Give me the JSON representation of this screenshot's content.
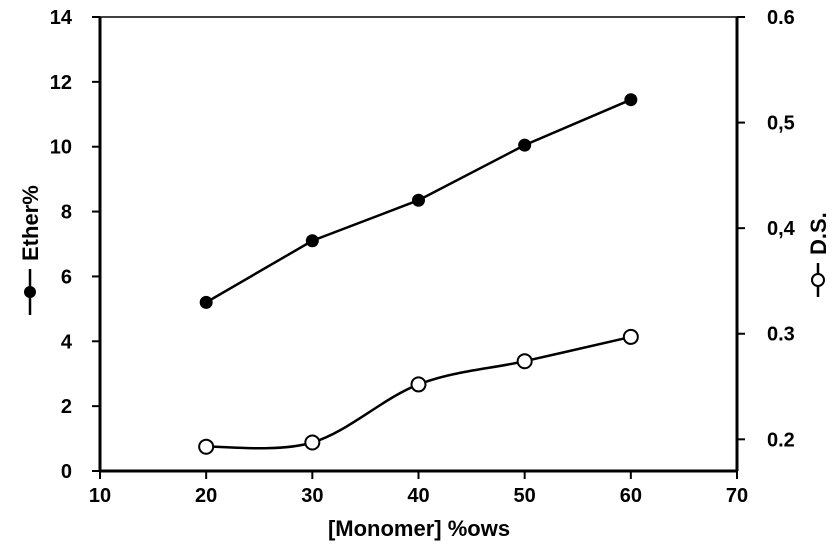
{
  "chart_data": {
    "type": "line",
    "xlabel": "[Monomer] %ows",
    "ylabel": "Ether%",
    "y2label": "D.S.",
    "xlim": [
      10,
      70
    ],
    "ylim": [
      0,
      14
    ],
    "y2lim": [
      0.17,
      0.6
    ],
    "xticks": [
      10,
      20,
      30,
      40,
      50,
      60,
      70
    ],
    "yticks": [
      0,
      2,
      4,
      6,
      8,
      10,
      12,
      14
    ],
    "y2ticks": [
      0.2,
      0.3,
      0.4,
      0.5,
      0.6
    ],
    "y2tick_labels": [
      "0.2",
      "0.3",
      "0,4",
      "0,5",
      "0.6"
    ],
    "grid": false,
    "series": [
      {
        "name": "Ether%",
        "axis": "left",
        "marker": "filled-circle",
        "color": "#000000",
        "x": [
          20,
          30,
          40,
          50,
          60
        ],
        "y": [
          5.2,
          7.1,
          8.35,
          10.05,
          11.45
        ]
      },
      {
        "name": "D.S.",
        "axis": "right",
        "marker": "open-circle",
        "color": "#000000",
        "x": [
          20,
          30,
          40,
          50,
          60
        ],
        "y": [
          0.193,
          0.197,
          0.252,
          0.274,
          0.297
        ]
      }
    ]
  }
}
